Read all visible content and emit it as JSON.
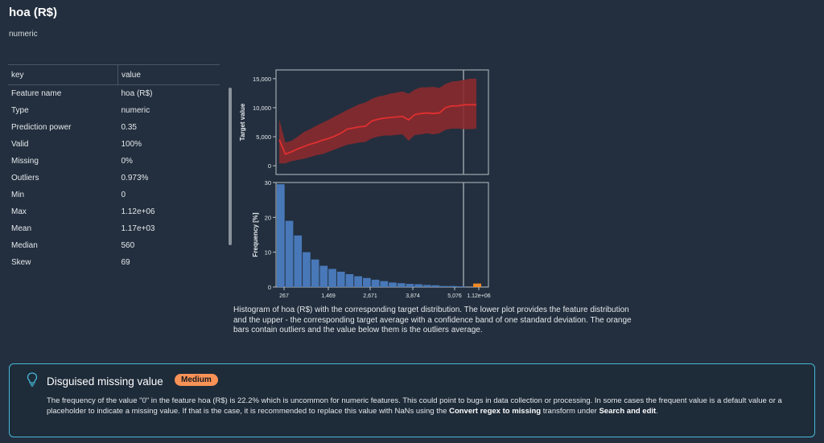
{
  "header": {
    "title": "hoa (R$)",
    "subtitle": "numeric"
  },
  "table": {
    "columns": [
      "key",
      "value"
    ],
    "rows": [
      [
        "Feature name",
        "hoa (R$)"
      ],
      [
        "Type",
        "numeric"
      ],
      [
        "Prediction power",
        "0.35"
      ],
      [
        "Valid",
        "100%"
      ],
      [
        "Missing",
        "0%"
      ],
      [
        "Outliers",
        "0.973%"
      ],
      [
        "Min",
        "0"
      ],
      [
        "Max",
        "1.12e+06"
      ],
      [
        "Mean",
        "1.17e+03"
      ],
      [
        "Median",
        "560"
      ],
      [
        "Skew",
        "69"
      ]
    ]
  },
  "chart_data": [
    {
      "type": "line",
      "ylabel": "Target value",
      "ylim": [
        -1500,
        16500
      ],
      "yticks": [
        "0",
        "5,000",
        "10,000",
        "15,000"
      ],
      "line_color": "#e03030",
      "band_color": "#8a2a2e",
      "x": [
        0,
        1,
        2,
        3,
        4,
        5,
        6,
        7,
        8,
        9,
        10,
        11,
        12,
        13,
        14,
        15,
        16,
        17,
        18,
        19,
        20,
        21,
        22,
        23,
        24,
        25,
        26,
        27,
        28,
        29,
        30,
        31,
        32
      ],
      "mean": [
        4500,
        2000,
        2400,
        2900,
        3300,
        3700,
        4000,
        4400,
        4700,
        5100,
        5600,
        6300,
        6500,
        6700,
        6800,
        7700,
        8000,
        8200,
        8300,
        8400,
        8500,
        7900,
        8800,
        9000,
        9100,
        9000,
        9100,
        10000,
        10300,
        10300,
        10500,
        10500,
        10500
      ],
      "upper": [
        8000,
        4000,
        4300,
        5000,
        5800,
        6300,
        6900,
        7400,
        7900,
        8500,
        9000,
        9600,
        10100,
        10600,
        10900,
        11500,
        11900,
        12100,
        12400,
        12600,
        12800,
        12400,
        13100,
        13500,
        13500,
        13600,
        13400,
        14100,
        14500,
        14600,
        14800,
        15000,
        15000
      ],
      "lower": [
        400,
        400,
        800,
        1000,
        1200,
        1500,
        1800,
        2000,
        2400,
        2800,
        3200,
        3600,
        3800,
        4000,
        4100,
        4700,
        5000,
        5200,
        5200,
        5300,
        5400,
        4300,
        5300,
        5400,
        5600,
        5400,
        5600,
        6200,
        6400,
        6400,
        6300,
        6300,
        6400
      ]
    },
    {
      "type": "bar",
      "ylabel": "Frequency [%]",
      "ylim": [
        0,
        30
      ],
      "yticks": [
        "0",
        "10",
        "20",
        "30"
      ],
      "xticks": [
        "267",
        "1,469",
        "2,671",
        "3,874",
        "5,076",
        "1.12e+06"
      ],
      "bar_color": "#4878b8",
      "outlier_color": "#f08a24",
      "values": [
        29.5,
        19,
        14.8,
        10,
        7.9,
        6.1,
        5.2,
        4.4,
        3.7,
        3.1,
        2.6,
        2.1,
        1.7,
        1.3,
        1.1,
        0.9,
        0.8,
        0.6,
        0.5,
        0.3,
        0.3,
        0.2
      ],
      "outlier_value": 1.0
    }
  ],
  "caption": "Histogram of hoa (R$) with the corresponding target distribution. The lower plot provides the feature distribution and the upper - the corresponding target average with a confidence band of one standard deviation. The orange bars contain outliers and the value below them is the outliers average.",
  "insight": {
    "icon": "lightbulb-icon",
    "title": "Disguised missing value",
    "badge": "Medium",
    "text_1": "The frequency of the value \"0\" in the feature hoa (R$) is 22.2% which is uncommon for numeric features. This could point to bugs in data collection or processing. In some cases the frequent value is a default value or a placeholder to indicate a missing value. If that is the case, it is recommended to replace this value with NaNs using the ",
    "bold_1": "Convert regex to missing",
    "text_2": " transform under ",
    "bold_2": "Search and edit",
    "text_3": "."
  }
}
